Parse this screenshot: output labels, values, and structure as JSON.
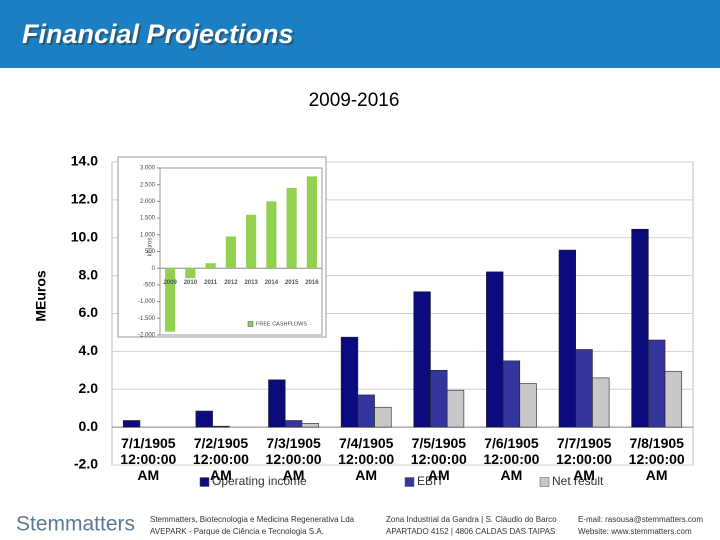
{
  "header": {
    "title": "Financial Projections"
  },
  "chart_data": [
    {
      "type": "bar",
      "title": "2009-2016",
      "ylabel": "MEuros",
      "categories": [
        "7/1/1905 12:00:00 AM",
        "7/2/1905 12:00:00 AM",
        "7/3/1905 12:00:00 AM",
        "7/4/1905 12:00:00 AM",
        "7/5/1905 12:00:00 AM",
        "7/6/1905 12:00:00 AM",
        "7/7/1905 12:00:00 AM",
        "7/8/1905 12:00:00 AM"
      ],
      "series": [
        {
          "name": "Operating income",
          "color": "#0b0b7e",
          "values": [
            0.35,
            0.85,
            2.5,
            4.75,
            7.15,
            8.2,
            9.35,
            10.45
          ]
        },
        {
          "name": "EBIT",
          "color": "#35359e",
          "values": [
            0.0,
            0.05,
            0.35,
            1.7,
            3.0,
            3.5,
            4.1,
            4.6
          ]
        },
        {
          "name": "Net result",
          "color": "#c8c8c8",
          "values": [
            0.0,
            0.0,
            0.2,
            1.05,
            1.95,
            2.3,
            2.6,
            2.95
          ]
        }
      ],
      "ylim": [
        -2,
        14
      ],
      "yticks": [
        {
          "value": -2,
          "label": "-2.0"
        },
        {
          "value": 0,
          "label": "0.0"
        },
        {
          "value": 2,
          "label": "2.0"
        },
        {
          "value": 4,
          "label": "4.0"
        },
        {
          "value": 6,
          "label": "6.0"
        },
        {
          "value": 8,
          "label": "8.0"
        },
        {
          "value": 10,
          "label": "10.0"
        },
        {
          "value": 12,
          "label": "12.0"
        },
        {
          "value": 14,
          "label": "14.0"
        }
      ],
      "grid": true,
      "legend": "bottom"
    },
    {
      "type": "bar",
      "ylabel": "kEuros",
      "categories": [
        "2009",
        "2010",
        "2011",
        "2012",
        "2013",
        "2014",
        "2015",
        "2016"
      ],
      "series": [
        {
          "name": "FREE CASHFLOWS",
          "color": "#92d050",
          "values": [
            -1900,
            -300,
            150,
            950,
            1600,
            2000,
            2400,
            2750
          ]
        }
      ],
      "ylim": [
        -2000,
        3000
      ],
      "yticks": [
        {
          "value": -2000,
          "label": "-2.000"
        },
        {
          "value": -1500,
          "label": "-1.500"
        },
        {
          "value": -1000,
          "label": "-1.000"
        },
        -500,
        0,
        500,
        {
          "value": 1000,
          "label": "1.000"
        },
        {
          "value": 1500,
          "label": "1.500"
        },
        {
          "value": 2000,
          "label": "2.000"
        },
        {
          "value": 2500,
          "label": "2.500"
        },
        {
          "value": 3000,
          "label": "3.000"
        }
      ],
      "grid": false,
      "legend": "bottom"
    }
  ],
  "footer": {
    "logo": "Stemmatters",
    "lines": [
      "Stemmatters, Biotecnologia e Medicina Regenerativa Lda",
      "AVEPARK - Parque de Ciência e Tecnologia S.A.",
      "Zona Industrial da Gandra | S. Cláudio do Barco",
      "APARTADO 4152 | 4806 CALDAS DAS TAIPAS",
      "E-mail: rasousa@stemmatters.com",
      "Website: www.stemmatters.com"
    ]
  }
}
